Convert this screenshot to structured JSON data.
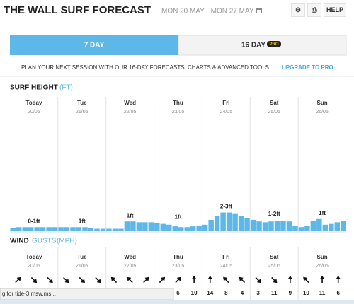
{
  "header": {
    "title": "THE WALL SURF FORECAST",
    "dates": "MON 20 MAY - MON 27 MAY",
    "help": "HELP"
  },
  "tabs": {
    "seven_day": "7 DAY",
    "sixteen_day": "16 DAY",
    "badge": "PRO"
  },
  "promo": {
    "text": "PLAN YOUR NEXT SESSION WITH OUR 16-DAY FORECASTS, CHARTS & ADVANCED TOOLS",
    "link": "UPGRADE TO PRO"
  },
  "surf": {
    "title": "SURF HEIGHT",
    "unit": "(FT)",
    "days": [
      {
        "name": "Today",
        "date": "20/05",
        "label": "0-1ft"
      },
      {
        "name": "Tue",
        "date": "21/05",
        "label": "1ft"
      },
      {
        "name": "Wed",
        "date": "22/05",
        "label": "1ft"
      },
      {
        "name": "Thu",
        "date": "23/05",
        "label": "1ft"
      },
      {
        "name": "Fri",
        "date": "24/05",
        "label": "2-3ft"
      },
      {
        "name": "Sat",
        "date": "25/05",
        "label": "1-2ft"
      },
      {
        "name": "Sun",
        "date": "26/05",
        "label": "1ft"
      }
    ],
    "bars": [
      0.4,
      0.5,
      0.5,
      0.5,
      0.5,
      0.5,
      0.5,
      0.5,
      0.5,
      0.5,
      0.5,
      0.5,
      0.5,
      0.4,
      0.3,
      0.3,
      0.3,
      0.3,
      0.3,
      1.2,
      1.2,
      1.1,
      1.1,
      1.1,
      1.0,
      0.9,
      0.8,
      0.6,
      0.5,
      0.5,
      0.6,
      0.7,
      0.8,
      1.4,
      1.9,
      2.3,
      2.3,
      2.2,
      1.9,
      1.6,
      1.4,
      1.2,
      1.1,
      1.2,
      1.3,
      1.3,
      1.2,
      0.7,
      0.5,
      0.7,
      1.3,
      1.5,
      0.8,
      0.9,
      1.1,
      1.3
    ]
  },
  "wind": {
    "title": "WIND",
    "gusts": "GUSTS",
    "unit": "(MPH)",
    "days": [
      {
        "name": "Today",
        "date": "20/05"
      },
      {
        "name": "Tue",
        "date": "21/05"
      },
      {
        "name": "Wed",
        "date": "22/05"
      },
      {
        "name": "Thu",
        "date": "23/05"
      },
      {
        "name": "Fri",
        "date": "24/05"
      },
      {
        "name": "Sat",
        "date": "25/05"
      },
      {
        "name": "Sun",
        "date": "26/05"
      }
    ],
    "directions": [
      45,
      135,
      135,
      135,
      135,
      135,
      315,
      315,
      45,
      45,
      45,
      0,
      0,
      315,
      315,
      135,
      135,
      0,
      315,
      0,
      0
    ],
    "gust_values": [
      null,
      null,
      null,
      null,
      null,
      null,
      null,
      null,
      null,
      null,
      6,
      10,
      14,
      8,
      4,
      3,
      11,
      9,
      10,
      11,
      6
    ]
  },
  "status_bar": "g for tide-3.msw.ms..."
}
